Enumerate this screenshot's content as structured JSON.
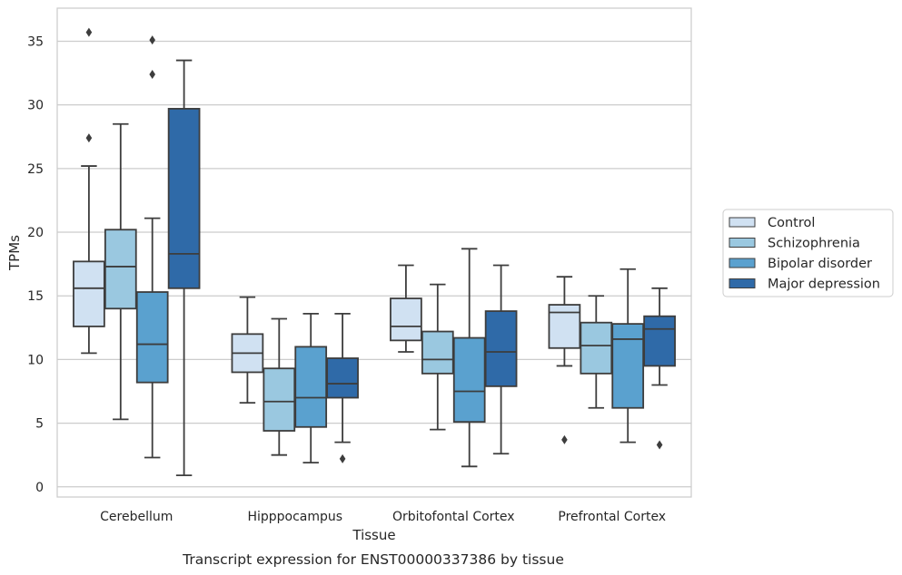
{
  "chart_data": {
    "type": "box",
    "xlabel": "Tissue",
    "ylabel": "TPMs",
    "caption": "Transcript expression for ENST00000337386 by tissue",
    "ylim": [
      -0.8,
      37.6
    ],
    "yticks": [
      0,
      5,
      10,
      15,
      20,
      25,
      30,
      35
    ],
    "grid": true,
    "legend_position": "right",
    "categories": [
      "Cerebellum",
      "Hipppocampus",
      "Orbitofontal Cortex",
      "Prefrontal Cortex"
    ],
    "series": [
      {
        "name": "Control",
        "color": "#d0e1f2",
        "boxes": [
          {
            "whislo": 10.5,
            "q1": 12.6,
            "med": 15.6,
            "q3": 17.7,
            "whishi": 25.2,
            "fliers": [
              27.4,
              35.7
            ]
          },
          {
            "whislo": 6.6,
            "q1": 9.0,
            "med": 10.5,
            "q3": 12.0,
            "whishi": 14.9,
            "fliers": []
          },
          {
            "whislo": 10.6,
            "q1": 11.5,
            "med": 12.6,
            "q3": 14.8,
            "whishi": 17.4,
            "fliers": []
          },
          {
            "whislo": 9.5,
            "q1": 10.9,
            "med": 13.7,
            "q3": 14.3,
            "whishi": 16.5,
            "fliers": [
              3.7
            ]
          }
        ]
      },
      {
        "name": "Schizophrenia",
        "color": "#9ac8e0",
        "boxes": [
          {
            "whislo": 5.3,
            "q1": 14.0,
            "med": 17.3,
            "q3": 20.2,
            "whishi": 28.5,
            "fliers": []
          },
          {
            "whislo": 2.5,
            "q1": 4.4,
            "med": 6.7,
            "q3": 9.3,
            "whishi": 13.2,
            "fliers": []
          },
          {
            "whislo": 4.5,
            "q1": 8.9,
            "med": 10.0,
            "q3": 12.2,
            "whishi": 15.9,
            "fliers": []
          },
          {
            "whislo": 6.2,
            "q1": 8.9,
            "med": 11.1,
            "q3": 12.9,
            "whishi": 15.0,
            "fliers": []
          }
        ]
      },
      {
        "name": "Bipolar disorder",
        "color": "#5aa1cf",
        "boxes": [
          {
            "whislo": 2.3,
            "q1": 8.2,
            "med": 11.2,
            "q3": 15.3,
            "whishi": 21.1,
            "fliers": [
              32.4,
              35.1
            ]
          },
          {
            "whislo": 1.9,
            "q1": 4.7,
            "med": 7.0,
            "q3": 11.0,
            "whishi": 13.6,
            "fliers": []
          },
          {
            "whislo": 1.6,
            "q1": 5.1,
            "med": 7.5,
            "q3": 11.7,
            "whishi": 18.7,
            "fliers": []
          },
          {
            "whislo": 3.5,
            "q1": 6.2,
            "med": 11.6,
            "q3": 12.8,
            "whishi": 17.1,
            "fliers": []
          }
        ]
      },
      {
        "name": "Major depression",
        "color": "#2f6aa8",
        "boxes": [
          {
            "whislo": 0.9,
            "q1": 15.6,
            "med": 18.3,
            "q3": 29.7,
            "whishi": 33.5,
            "fliers": []
          },
          {
            "whislo": 3.5,
            "q1": 7.0,
            "med": 8.1,
            "q3": 10.1,
            "whishi": 13.6,
            "fliers": [
              2.2
            ]
          },
          {
            "whislo": 2.6,
            "q1": 7.9,
            "med": 10.6,
            "q3": 13.8,
            "whishi": 17.4,
            "fliers": []
          },
          {
            "whislo": 8.0,
            "q1": 9.5,
            "med": 12.4,
            "q3": 13.4,
            "whishi": 15.6,
            "fliers": [
              3.3
            ]
          }
        ]
      }
    ]
  }
}
